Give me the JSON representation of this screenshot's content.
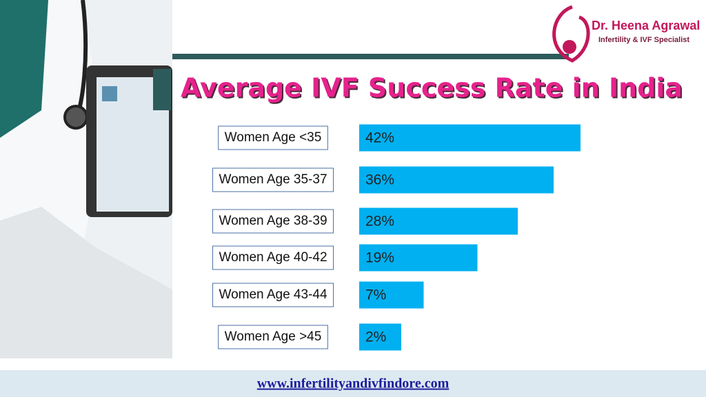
{
  "header": {
    "doctor": "Dr. Heena Agrawal",
    "specialty": "Infertility & IVF Specialist"
  },
  "chart_data": {
    "type": "bar",
    "orientation": "horizontal",
    "title": "Average IVF Success Rate in India",
    "categories": [
      "Women Age <35",
      "Women Age 35-37",
      "Women Age 38-39",
      "Women Age 40-42",
      "Women Age 43-44",
      "Women Age >45"
    ],
    "values": [
      42,
      36,
      28,
      19,
      7,
      2
    ],
    "value_labels": [
      "42%",
      "36%",
      "28%",
      "19%",
      "7%",
      "2%"
    ],
    "color": "#00b0f0"
  },
  "footer": {
    "url": "www.infertilityandivfindore.com"
  }
}
